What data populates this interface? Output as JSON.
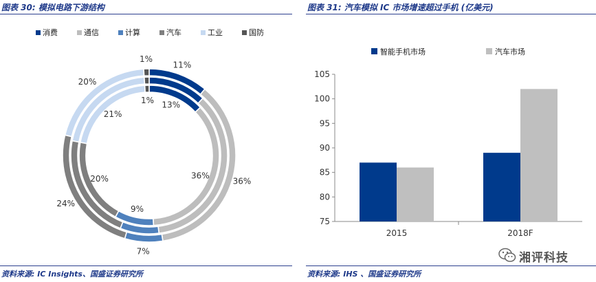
{
  "left_panel": {
    "title": "图表 30: 模拟电路下游结构",
    "source": "资料来源: IC Insights、国盛证券研究所"
  },
  "right_panel": {
    "title": "图表 31: 汽车模拟 IC 市场增速超过手机 (亿美元)",
    "source": "资料来源: IHS 、国盛证券研究所"
  },
  "watermark": {
    "text": "湘评科技",
    "icon": "wechat-icon"
  },
  "chart_data": [
    {
      "type": "donut",
      "title": "",
      "legend_position": "top",
      "categories": [
        "消费",
        "通信",
        "计算",
        "汽车",
        "工业",
        "国防"
      ],
      "colors": [
        "#003a8c",
        "#bdbdbd",
        "#4f81bd",
        "#7f7f7f",
        "#c6d9f1",
        "#555555"
      ],
      "rings": [
        {
          "values": [
            13,
            36,
            9,
            20,
            21,
            1
          ],
          "labels": [
            "13%",
            "36%",
            "9%",
            "20%",
            "21%",
            "1%"
          ]
        },
        {
          "values": [
            12,
            36,
            8,
            22,
            21,
            1
          ],
          "labels": []
        },
        {
          "values": [
            11,
            36,
            7,
            24,
            20,
            1
          ],
          "labels": [
            "11%",
            "36%",
            "7%",
            "24%",
            "20%",
            "1%"
          ]
        }
      ]
    },
    {
      "type": "bar",
      "title": "",
      "legend_position": "top",
      "categories": [
        "2015",
        "2018F"
      ],
      "series": [
        {
          "name": "智能手机市场",
          "color": "#003a8c",
          "values": [
            87,
            89
          ]
        },
        {
          "name": "汽车市场",
          "color": "#bfbfbf",
          "values": [
            86,
            102
          ]
        }
      ],
      "ylim": [
        75,
        105
      ],
      "yticks": [
        75,
        80,
        85,
        90,
        95,
        100,
        105
      ],
      "xlabel": "",
      "ylabel": "",
      "grid": false
    }
  ]
}
